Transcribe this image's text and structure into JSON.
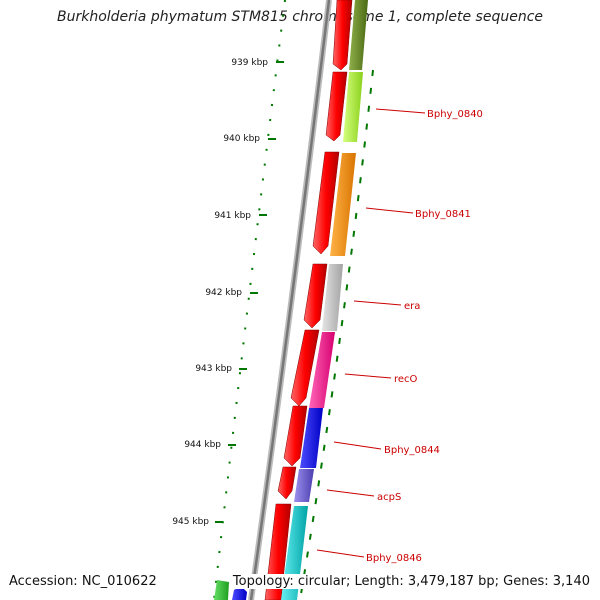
{
  "title": "Burkholderia phymatum STM815 chromosome 1, complete sequence",
  "footer": {
    "accession": "Accession: NC_010622",
    "topology": "Topology: circular; Length: 3,479,187 bp; Genes: 3,140"
  },
  "ticks": [
    {
      "kbp": 939,
      "label": "939 kbp"
    },
    {
      "kbp": 940,
      "label": "940 kbp"
    },
    {
      "kbp": 941,
      "label": "941 kbp"
    },
    {
      "kbp": 942,
      "label": "942 kbp"
    },
    {
      "kbp": 943,
      "label": "943 kbp"
    },
    {
      "kbp": 944,
      "label": "944 kbp"
    },
    {
      "kbp": 945,
      "label": "945 kbp"
    }
  ],
  "gene_labels": [
    {
      "name": "Bphy_0840",
      "color": "#cc0000"
    },
    {
      "name": "Bphy_0841",
      "color": "#cc0000"
    },
    {
      "name": "era",
      "color": "#cc0000"
    },
    {
      "name": "recO",
      "color": "#cc0000"
    },
    {
      "name": "Bphy_0844",
      "color": "#cc0000"
    },
    {
      "name": "acpS",
      "color": "#cc0000"
    },
    {
      "name": "Bphy_0846",
      "color": "#cc0000"
    }
  ],
  "colors": {
    "strand_arrows": "#ff0000",
    "backbone": "#888888",
    "ticks": "#007700",
    "cog_segments": [
      "#6b8e23",
      "#adff2f",
      "#ff8c00",
      "#c0c0c0",
      "#ff1493",
      "#0000ff",
      "#6a5acd",
      "#00ced1"
    ]
  }
}
